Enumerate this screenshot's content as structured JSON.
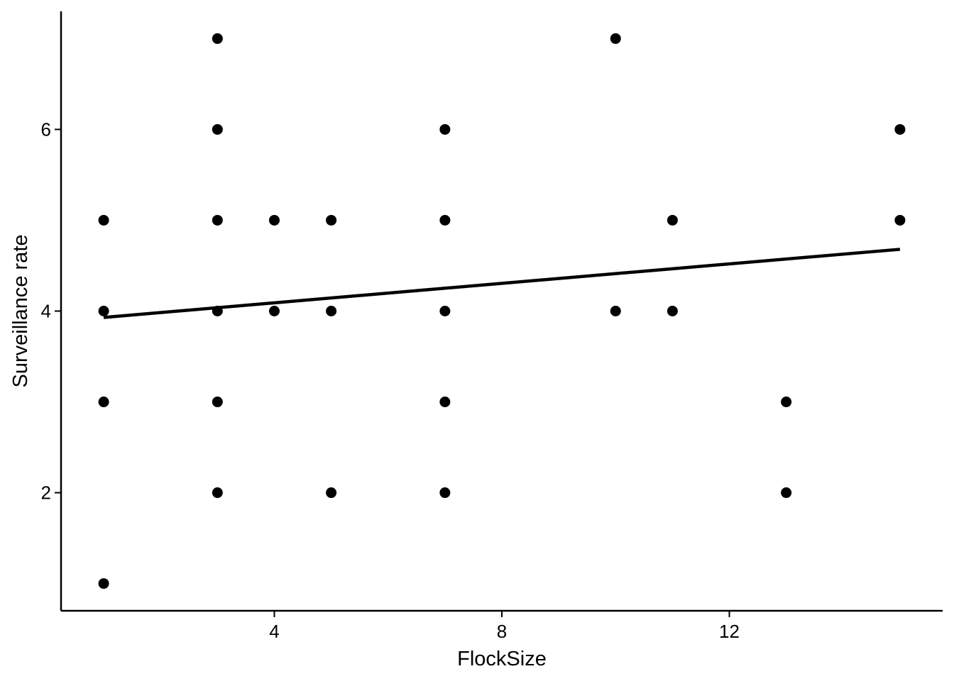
{
  "chart_data": {
    "type": "scatter",
    "title": "",
    "xlabel": "FlockSize",
    "ylabel": "Surveillance rate",
    "xlim": [
      0.25,
      15.75
    ],
    "ylim": [
      0.7,
      7.3
    ],
    "x_ticks": [
      4,
      8,
      12
    ],
    "y_ticks": [
      2,
      4,
      6
    ],
    "grid": false,
    "legend": "none",
    "points": [
      {
        "x": 1,
        "y": 1
      },
      {
        "x": 1,
        "y": 3
      },
      {
        "x": 1,
        "y": 4
      },
      {
        "x": 1,
        "y": 5
      },
      {
        "x": 3,
        "y": 2
      },
      {
        "x": 3,
        "y": 3
      },
      {
        "x": 3,
        "y": 4
      },
      {
        "x": 3,
        "y": 5
      },
      {
        "x": 3,
        "y": 6
      },
      {
        "x": 3,
        "y": 7
      },
      {
        "x": 4,
        "y": 4
      },
      {
        "x": 4,
        "y": 5
      },
      {
        "x": 5,
        "y": 2
      },
      {
        "x": 5,
        "y": 4
      },
      {
        "x": 5,
        "y": 5
      },
      {
        "x": 7,
        "y": 2
      },
      {
        "x": 7,
        "y": 3
      },
      {
        "x": 7,
        "y": 4
      },
      {
        "x": 7,
        "y": 5
      },
      {
        "x": 7,
        "y": 6
      },
      {
        "x": 10,
        "y": 4
      },
      {
        "x": 10,
        "y": 7
      },
      {
        "x": 11,
        "y": 4
      },
      {
        "x": 11,
        "y": 5
      },
      {
        "x": 13,
        "y": 2
      },
      {
        "x": 13,
        "y": 3
      },
      {
        "x": 15,
        "y": 5
      },
      {
        "x": 15,
        "y": 6
      }
    ],
    "fit_line": {
      "x": [
        1,
        15
      ],
      "y": [
        3.93,
        4.68
      ]
    }
  }
}
